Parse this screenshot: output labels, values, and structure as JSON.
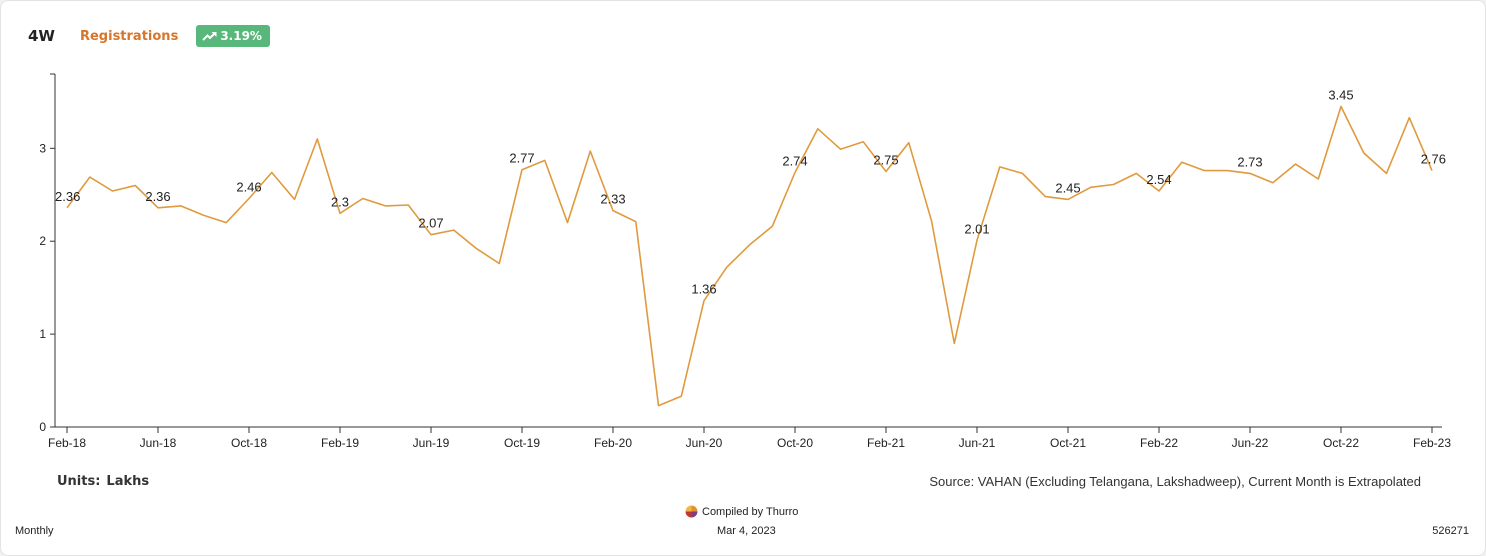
{
  "header": {
    "segment": "4W",
    "metric": "Registrations",
    "badge": "3.19%",
    "badge_icon": "trending-up-icon"
  },
  "footer": {
    "units_label": "Units:",
    "units_value": "Lakhs",
    "source": "Source: VAHAN (Excluding Telangana, Lakshadweep), Current Month is Extrapolated",
    "compiled_by": "Compiled by Thurro",
    "date": "Mar 4, 2023",
    "frequency": "Monthly",
    "code": "526271"
  },
  "colors": {
    "line": "#e09a3e",
    "metric": "#d9752a",
    "badge": "#58b77b"
  },
  "chart_data": {
    "type": "line",
    "x": [
      "Feb-18",
      "Mar-18",
      "Apr-18",
      "May-18",
      "Jun-18",
      "Jul-18",
      "Aug-18",
      "Sep-18",
      "Oct-18",
      "Nov-18",
      "Dec-18",
      "Jan-19",
      "Feb-19",
      "Mar-19",
      "Apr-19",
      "May-19",
      "Jun-19",
      "Jul-19",
      "Aug-19",
      "Sep-19",
      "Oct-19",
      "Nov-19",
      "Dec-19",
      "Jan-20",
      "Feb-20",
      "Mar-20",
      "Apr-20",
      "May-20",
      "Jun-20",
      "Jul-20",
      "Aug-20",
      "Sep-20",
      "Oct-20",
      "Nov-20",
      "Dec-20",
      "Jan-21",
      "Feb-21",
      "Mar-21",
      "Apr-21",
      "May-21",
      "Jun-21",
      "Jul-21",
      "Aug-21",
      "Sep-21",
      "Oct-21",
      "Nov-21",
      "Dec-21",
      "Jan-22",
      "Feb-22",
      "Mar-22",
      "Apr-22",
      "May-22",
      "Jun-22",
      "Jul-22",
      "Aug-22",
      "Sep-22",
      "Oct-22",
      "Nov-22",
      "Dec-22",
      "Jan-23",
      "Feb-23"
    ],
    "series": [
      {
        "values": [
          2.36,
          2.69,
          2.54,
          2.6,
          2.36,
          2.38,
          2.28,
          2.2,
          2.46,
          2.74,
          2.45,
          3.1,
          2.3,
          2.46,
          2.38,
          2.39,
          2.07,
          2.12,
          1.92,
          1.76,
          2.77,
          2.87,
          2.2,
          2.97,
          2.33,
          2.21,
          0.23,
          0.33,
          1.36,
          1.72,
          1.96,
          2.16,
          2.74,
          3.21,
          2.99,
          3.07,
          2.75,
          3.06,
          2.22,
          0.9,
          2.01,
          2.8,
          2.73,
          2.48,
          2.45,
          2.58,
          2.61,
          2.73,
          2.54,
          2.85,
          2.76,
          2.76,
          2.73,
          2.63,
          2.83,
          2.67,
          3.45,
          2.95,
          2.73,
          3.33,
          2.76
        ]
      }
    ],
    "tick_labels": [
      "Feb-18",
      "Jun-18",
      "Oct-18",
      "Feb-19",
      "Jun-19",
      "Oct-19",
      "Feb-20",
      "Jun-20",
      "Oct-20",
      "Feb-21",
      "Jun-21",
      "Oct-21",
      "Feb-22",
      "Jun-22",
      "Oct-22",
      "Feb-23"
    ],
    "yticks": [
      0,
      1,
      2,
      3
    ],
    "ylim": [
      0,
      3.8
    ],
    "labeled_points": [
      "Feb-18",
      "Jun-18",
      "Oct-18",
      "Feb-19",
      "Jun-19",
      "Oct-19",
      "Feb-20",
      "Jun-20",
      "Oct-20",
      "Feb-21",
      "Jun-21",
      "Oct-21",
      "Feb-22",
      "Jun-22",
      "Oct-22",
      "Feb-23"
    ],
    "grid": false
  }
}
